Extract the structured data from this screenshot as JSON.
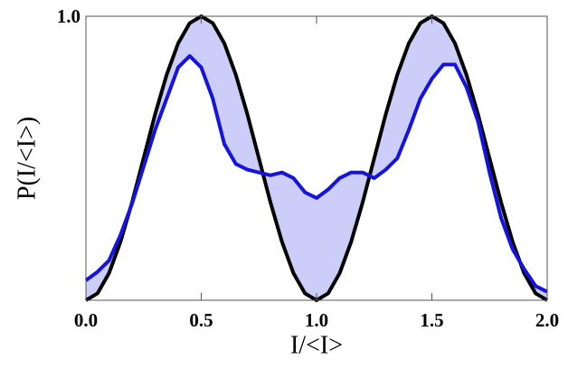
{
  "chart_data": {
    "type": "line",
    "x_label": "I/<I>",
    "y_label": "P(I/<I>)",
    "x": [
      0,
      0.05,
      0.1,
      0.15,
      0.2,
      0.25,
      0.3,
      0.35,
      0.4,
      0.45,
      0.5,
      0.55,
      0.6,
      0.65,
      0.7,
      0.75,
      0.8,
      0.85,
      0.9,
      0.95,
      1.0,
      1.05,
      1.1,
      1.15,
      1.2,
      1.25,
      1.3,
      1.35,
      1.4,
      1.45,
      1.5,
      1.55,
      1.6,
      1.65,
      1.7,
      1.75,
      1.8,
      1.85,
      1.9,
      1.95,
      2.0
    ],
    "series": [
      {
        "color": "#000000",
        "values": [
          0,
          0.024,
          0.095,
          0.206,
          0.345,
          0.5,
          0.655,
          0.794,
          0.905,
          0.976,
          1,
          0.976,
          0.905,
          0.794,
          0.655,
          0.5,
          0.345,
          0.206,
          0.095,
          0.024,
          0,
          0.024,
          0.095,
          0.206,
          0.345,
          0.5,
          0.655,
          0.794,
          0.905,
          0.976,
          1,
          0.976,
          0.905,
          0.794,
          0.655,
          0.5,
          0.345,
          0.206,
          0.095,
          0.024,
          0
        ]
      },
      {
        "color": "#1414dc",
        "values": [
          0.07,
          0.1,
          0.14,
          0.23,
          0.34,
          0.47,
          0.6,
          0.71,
          0.82,
          0.86,
          0.82,
          0.71,
          0.55,
          0.48,
          0.46,
          0.45,
          0.44,
          0.45,
          0.43,
          0.38,
          0.36,
          0.39,
          0.43,
          0.45,
          0.45,
          0.43,
          0.46,
          0.5,
          0.6,
          0.71,
          0.78,
          0.83,
          0.83,
          0.75,
          0.63,
          0.45,
          0.29,
          0.18,
          0.11,
          0.05,
          0.03
        ]
      }
    ],
    "fill_color": "#cccdf8",
    "xlim": [
      0,
      2
    ],
    "ylim": [
      0,
      1
    ],
    "xticks": [
      {
        "value": 0,
        "label": "0.0"
      },
      {
        "value": 0.5,
        "label": "0.5"
      },
      {
        "value": 1,
        "label": "1.0"
      },
      {
        "value": 1.5,
        "label": "1.5"
      },
      {
        "value": 2,
        "label": "2.0"
      }
    ],
    "yticks": [
      {
        "value": 1,
        "label": "1.0"
      }
    ]
  }
}
